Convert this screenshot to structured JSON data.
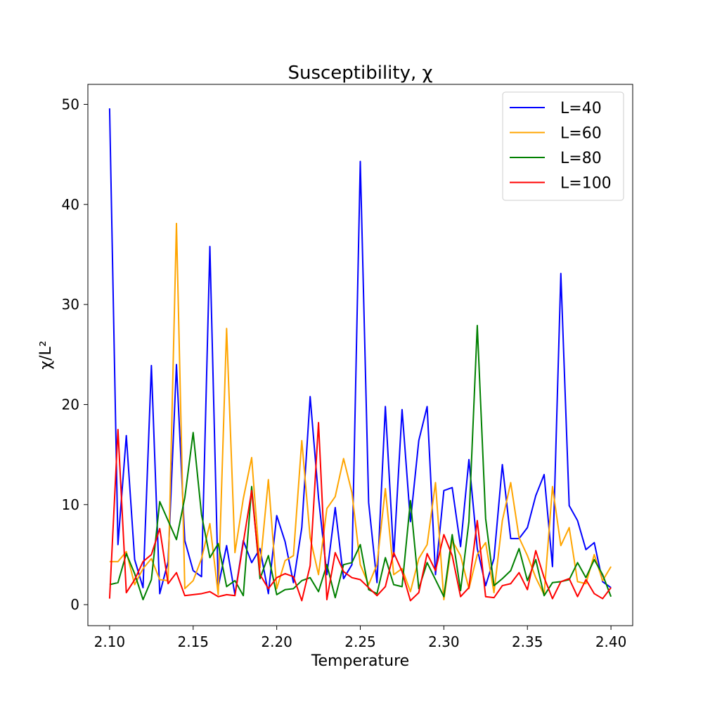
{
  "chart_data": {
    "type": "line",
    "title": "Susceptibility, χ",
    "xlabel": "Temperature",
    "ylabel": "χ/L²",
    "xlim": [
      2.087,
      2.413
    ],
    "ylim": [
      -2.1,
      52.0
    ],
    "xticks": [
      2.1,
      2.15,
      2.2,
      2.25,
      2.3,
      2.35,
      2.4
    ],
    "xtick_labels": [
      "2.10",
      "2.15",
      "2.20",
      "2.25",
      "2.30",
      "2.35",
      "2.40"
    ],
    "yticks": [
      0,
      10,
      20,
      30,
      40,
      50
    ],
    "ytick_labels": [
      "0",
      "10",
      "20",
      "30",
      "40",
      "50"
    ],
    "grid": false,
    "legend_position": "top-right",
    "x": [
      2.1,
      2.105,
      2.11,
      2.115,
      2.12,
      2.125,
      2.13,
      2.135,
      2.14,
      2.145,
      2.15,
      2.155,
      2.16,
      2.165,
      2.17,
      2.175,
      2.18,
      2.185,
      2.19,
      2.195,
      2.2,
      2.205,
      2.21,
      2.215,
      2.22,
      2.225,
      2.23,
      2.235,
      2.24,
      2.245,
      2.25,
      2.255,
      2.26,
      2.265,
      2.27,
      2.275,
      2.28,
      2.285,
      2.29,
      2.295,
      2.3,
      2.305,
      2.31,
      2.315,
      2.32,
      2.325,
      2.33,
      2.335,
      2.34,
      2.345,
      2.35,
      2.355,
      2.36,
      2.365,
      2.37,
      2.375,
      2.38,
      2.385,
      2.39,
      2.395,
      2.4
    ],
    "series": [
      {
        "name": "L=40",
        "color": "#0000ff",
        "values": [
          49.6,
          6.0,
          16.9,
          4.5,
          1.7,
          23.9,
          1.1,
          4.3,
          24.0,
          6.4,
          3.4,
          2.8,
          35.8,
          1.8,
          5.9,
          1.0,
          6.4,
          4.2,
          5.6,
          1.1,
          8.9,
          6.3,
          2.2,
          7.7,
          20.8,
          10.7,
          3.0,
          9.7,
          2.6,
          4.0,
          44.3,
          10.2,
          2.2,
          19.8,
          4.8,
          19.5,
          8.3,
          16.4,
          19.8,
          3.0,
          11.4,
          11.7,
          5.8,
          14.5,
          5.6,
          1.9,
          4.6,
          14.0,
          6.6,
          6.6,
          7.7,
          10.9,
          13.0,
          3.8,
          33.1,
          9.9,
          8.4,
          5.5,
          6.2,
          2.3,
          1.7
        ]
      },
      {
        "name": "L=60",
        "color": "#ffa500",
        "values": [
          4.3,
          4.3,
          5.3,
          2.0,
          3.6,
          4.6,
          2.5,
          2.4,
          38.1,
          1.6,
          2.4,
          4.6,
          8.1,
          1.0,
          27.6,
          5.2,
          10.6,
          14.7,
          3.7,
          12.5,
          1.6,
          4.4,
          4.9,
          16.4,
          6.7,
          3.0,
          9.6,
          10.8,
          14.6,
          11.2,
          4.0,
          2.0,
          4.0,
          11.6,
          3.0,
          3.6,
          1.3,
          4.6,
          6.0,
          12.2,
          0.5,
          6.4,
          4.9,
          1.6,
          5.0,
          6.2,
          1.2,
          8.4,
          12.2,
          6.7,
          4.9,
          2.7,
          1.0,
          11.8,
          5.9,
          7.7,
          2.3,
          2.1,
          5.0,
          2.4,
          3.8
        ]
      },
      {
        "name": "L=80",
        "color": "#008000",
        "values": [
          2.0,
          2.2,
          5.1,
          3.1,
          0.5,
          2.5,
          10.3,
          8.4,
          6.5,
          10.7,
          17.2,
          9.0,
          4.7,
          6.1,
          1.8,
          2.4,
          0.9,
          11.8,
          2.6,
          4.9,
          1.0,
          1.5,
          1.6,
          2.4,
          2.7,
          1.3,
          4.0,
          0.7,
          4.0,
          4.2,
          6.0,
          1.5,
          1.1,
          4.7,
          2.0,
          1.8,
          10.4,
          1.6,
          4.2,
          2.5,
          0.8,
          7.0,
          1.4,
          8.3,
          27.9,
          8.6,
          1.9,
          2.6,
          3.4,
          5.6,
          2.4,
          4.5,
          0.9,
          2.2,
          2.3,
          2.5,
          4.2,
          2.7,
          4.5,
          3.0,
          0.8
        ]
      },
      {
        "name": "L=100",
        "color": "#ff0000",
        "values": [
          0.6,
          17.5,
          1.2,
          2.5,
          4.3,
          5.0,
          7.6,
          2.1,
          3.2,
          0.9,
          1.0,
          1.1,
          1.3,
          0.8,
          1.0,
          0.9,
          6.2,
          11.4,
          3.0,
          1.6,
          2.7,
          3.1,
          2.8,
          0.4,
          3.9,
          18.2,
          0.5,
          5.2,
          3.3,
          2.7,
          2.5,
          1.7,
          0.9,
          1.8,
          5.2,
          3.3,
          0.4,
          1.2,
          5.1,
          3.4,
          7.0,
          4.9,
          0.8,
          1.7,
          8.4,
          0.8,
          0.7,
          1.9,
          2.1,
          3.2,
          1.5,
          5.4,
          2.7,
          0.6,
          2.3,
          2.6,
          0.8,
          2.5,
          1.1,
          0.6,
          1.7
        ]
      }
    ]
  }
}
